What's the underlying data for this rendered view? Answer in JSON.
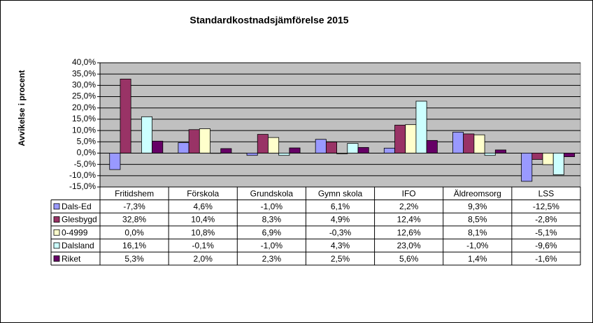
{
  "chart_data": {
    "type": "bar",
    "title": "Standardkostnadsjämförelse 2015",
    "y_label": "Avvikelse i procent",
    "categories": [
      "Fritidshem",
      "Förskola",
      "Grundskola",
      "Gymn skola",
      "IFO",
      "Äldreomsorg",
      "LSS"
    ],
    "series": [
      {
        "name": "Dals-Ed",
        "color": "#9999ff",
        "values": [
          -7.3,
          4.6,
          -1.0,
          6.1,
          2.2,
          9.3,
          -12.5
        ],
        "value_labels": [
          "-7,3%",
          "4,6%",
          "-1,0%",
          "6,1%",
          "2,2%",
          "9,3%",
          "-12,5%"
        ]
      },
      {
        "name": "Glesbygd",
        "color": "#993366",
        "values": [
          32.8,
          10.4,
          8.3,
          4.9,
          12.4,
          8.5,
          -2.8
        ],
        "value_labels": [
          "32,8%",
          "10,4%",
          "8,3%",
          "4,9%",
          "12,4%",
          "8,5%",
          "-2,8%"
        ]
      },
      {
        "name": "0-4999",
        "color": "#ffffcc",
        "values": [
          0.0,
          10.8,
          6.9,
          -0.3,
          12.6,
          8.1,
          -5.1
        ],
        "value_labels": [
          "0,0%",
          "10,8%",
          "6,9%",
          "-0,3%",
          "12,6%",
          "8,1%",
          "-5,1%"
        ]
      },
      {
        "name": "Dalsland",
        "color": "#ccffff",
        "values": [
          16.1,
          -0.1,
          -1.0,
          4.3,
          23.0,
          -1.0,
          -9.6
        ],
        "value_labels": [
          "16,1%",
          "-0,1%",
          "-1,0%",
          "4,3%",
          "23,0%",
          "-1,0%",
          "-9,6%"
        ]
      },
      {
        "name": "Riket",
        "color": "#660066",
        "values": [
          5.3,
          2.0,
          2.3,
          2.5,
          5.6,
          1.4,
          -1.6
        ],
        "value_labels": [
          "5,3%",
          "2,0%",
          "2,3%",
          "2,5%",
          "5,6%",
          "1,4%",
          "-1,6%"
        ]
      }
    ],
    "ylim": [
      -15,
      40
    ],
    "yticks": [
      {
        "value": -15,
        "label": "-15,0%"
      },
      {
        "value": -10,
        "label": "-10,0%"
      },
      {
        "value": -5,
        "label": "-5,0%"
      },
      {
        "value": 0,
        "label": "0,0%"
      },
      {
        "value": 5,
        "label": "5,0%"
      },
      {
        "value": 10,
        "label": "10,0%"
      },
      {
        "value": 15,
        "label": "15,0%"
      },
      {
        "value": 20,
        "label": "20,0%"
      },
      {
        "value": 25,
        "label": "25,0%"
      },
      {
        "value": 30,
        "label": "30,0%"
      },
      {
        "value": 35,
        "label": "35,0%"
      },
      {
        "value": 40,
        "label": "40,0%"
      }
    ],
    "grid": true,
    "plot_background": "#c0c0c0"
  }
}
